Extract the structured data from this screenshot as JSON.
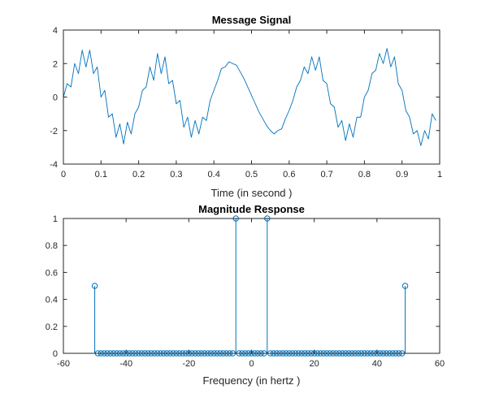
{
  "figure": {
    "color_line": "#0072BD",
    "color_axis": "#262626"
  },
  "chart_data": [
    {
      "type": "line",
      "title": "Message Signal",
      "xlabel": "Time (in second )",
      "ylabel": "",
      "xlim": [
        0,
        1
      ],
      "ylim": [
        -4,
        4
      ],
      "xticks": [
        0,
        0.1,
        0.2,
        0.3,
        0.4,
        0.5,
        0.6,
        0.7,
        0.8,
        0.9,
        1
      ],
      "yticks": [
        -4,
        -2,
        0,
        2,
        4
      ],
      "grid": false,
      "series": [
        {
          "color": "#0072BD",
          "x": [
            0.0,
            0.01,
            0.02,
            0.03,
            0.04,
            0.05,
            0.06,
            0.07,
            0.08,
            0.09,
            0.1,
            0.11,
            0.12,
            0.13,
            0.14,
            0.15,
            0.16,
            0.17,
            0.18,
            0.19,
            0.2,
            0.21,
            0.22,
            0.23,
            0.24,
            0.25,
            0.26,
            0.27,
            0.28,
            0.29,
            0.3,
            0.31,
            0.32,
            0.33,
            0.34,
            0.35,
            0.36,
            0.37,
            0.38,
            0.39,
            0.4,
            0.41,
            0.42,
            0.43,
            0.44,
            0.45,
            0.46,
            0.47,
            0.48,
            0.49,
            0.5,
            0.51,
            0.52,
            0.53,
            0.54,
            0.55,
            0.56,
            0.57,
            0.58,
            0.59,
            0.6,
            0.61,
            0.62,
            0.63,
            0.64,
            0.65,
            0.66,
            0.67,
            0.68,
            0.69,
            0.7,
            0.71,
            0.72,
            0.73,
            0.74,
            0.75,
            0.76,
            0.77,
            0.78,
            0.79,
            0.8,
            0.81,
            0.82,
            0.83,
            0.84,
            0.85,
            0.86,
            0.87,
            0.88,
            0.89,
            0.9,
            0.91,
            0.92,
            0.93,
            0.94,
            0.95,
            0.96,
            0.97,
            0.98,
            0.99
          ],
          "y": [
            0.0,
            0.8,
            0.6,
            2.0,
            1.4,
            2.8,
            1.8,
            2.8,
            1.4,
            1.8,
            0.0,
            0.4,
            -1.2,
            -1.0,
            -2.4,
            -1.6,
            -2.8,
            -1.5,
            -2.2,
            -1.0,
            -0.6,
            0.4,
            0.6,
            1.8,
            1.0,
            2.6,
            1.4,
            2.4,
            0.8,
            1.0,
            -0.4,
            -0.2,
            -1.8,
            -1.2,
            -2.4,
            -1.4,
            -2.2,
            -1.2,
            -1.4,
            -0.2,
            0.4,
            1.0,
            1.7,
            1.8,
            2.1,
            2.0,
            1.9,
            1.5,
            1.1,
            0.6,
            0.1,
            -0.4,
            -0.9,
            -1.3,
            -1.7,
            -2.0,
            -2.2,
            -2.0,
            -1.9,
            -1.3,
            -0.8,
            -0.2,
            0.6,
            1.0,
            1.8,
            1.4,
            2.4,
            1.6,
            2.4,
            1.0,
            0.8,
            -0.4,
            -0.6,
            -1.8,
            -1.4,
            -2.6,
            -1.6,
            -2.4,
            -1.2,
            -1.2,
            0.0,
            0.4,
            1.4,
            1.6,
            2.6,
            2.0,
            2.9,
            1.8,
            2.4,
            0.8,
            0.4,
            -0.8,
            -1.2,
            -2.2,
            -2.0,
            -2.9,
            -2.0,
            -2.5,
            -1.0,
            -1.4
          ]
        }
      ]
    },
    {
      "type": "stem",
      "title": "Magnitude Response",
      "xlabel": "Frequency (in hertz )",
      "ylabel": "",
      "xlim": [
        -60,
        60
      ],
      "ylim": [
        0,
        1
      ],
      "xticks": [
        -60,
        -40,
        -20,
        0,
        20,
        40,
        60
      ],
      "yticks": [
        0,
        0.2,
        0.4,
        0.6,
        0.8,
        1
      ],
      "grid": false,
      "x_start": -50,
      "x_end": 49,
      "x_step": 1,
      "nonzero": [
        {
          "x": -50,
          "y": 0.5
        },
        {
          "x": -5,
          "y": 1.0
        },
        {
          "x": 5,
          "y": 1.0
        },
        {
          "x": 49,
          "y": 0.5
        }
      ]
    }
  ]
}
